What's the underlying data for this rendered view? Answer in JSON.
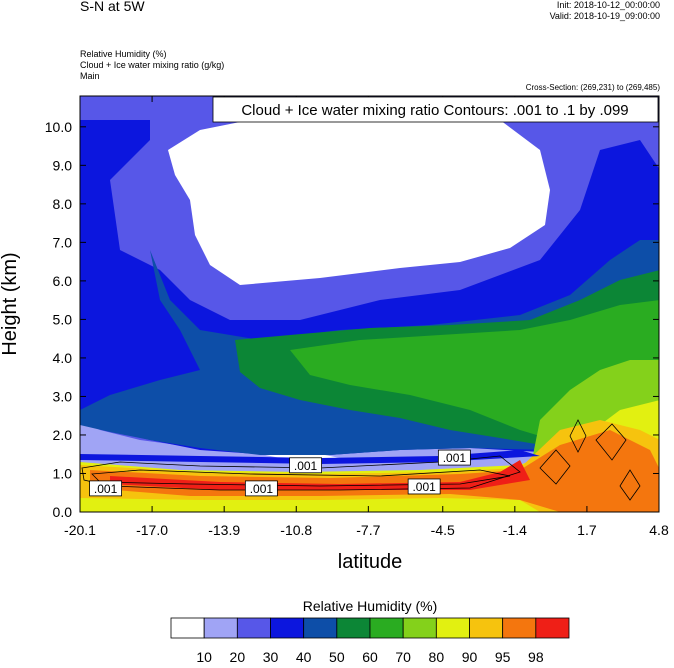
{
  "header": {
    "title": "S-N at 5W",
    "init": "Init: 2018-10-12_00:00:00",
    "valid": "Valid: 2018-10-19_09:00:00",
    "fields": [
      "Relative Humidity   (%)",
      "Cloud + Ice water mixing ratio   (g/kg)",
      "Main"
    ],
    "cross_section": "Cross-Section: (269,231) to (269,485)"
  },
  "chart_data": {
    "type": "heatmap",
    "title": "",
    "contour_label": "Cloud + Ice water mixing ratio Contours: .001 to .1 by .099",
    "xlabel": "latitude",
    "ylabel": "Height (km)",
    "xlim": [
      -20.1,
      4.8
    ],
    "ylim": [
      0.0,
      10.8
    ],
    "x_ticks": [
      "-20.1",
      "-17.0",
      "-13.9",
      "-10.8",
      "-7.7",
      "-4.5",
      "-1.4",
      "1.7",
      "4.8"
    ],
    "y_ticks": [
      "0.0",
      "1.0",
      "2.0",
      "3.0",
      "4.0",
      "5.0",
      "6.0",
      "7.0",
      "8.0",
      "9.0",
      "10.0"
    ],
    "contour_labels": [
      {
        "text": ".001",
        "x": -19.0,
        "y": 0.6
      },
      {
        "text": ".001",
        "x": -12.3,
        "y": 0.6
      },
      {
        "text": ".001",
        "x": -10.4,
        "y": 1.2
      },
      {
        "text": ".001",
        "x": -5.3,
        "y": 0.65
      },
      {
        "text": ".001",
        "x": -4.0,
        "y": 1.4
      }
    ],
    "colorbar": {
      "title": "Relative Humidity  (%)",
      "levels": [
        "10",
        "20",
        "30",
        "40",
        "50",
        "60",
        "70",
        "80",
        "90",
        "95",
        "98"
      ],
      "colors": [
        "#ffffff",
        "#a0a4f5",
        "#5757e8",
        "#0c16de",
        "#0d4ea8",
        "#0c8636",
        "#2aac21",
        "#84d11b",
        "#e2f011",
        "#f6c30e",
        "#f4760e",
        "#ef1f17"
      ]
    },
    "field_bands": [
      {
        "level": 0,
        "color": "#ffffff"
      },
      {
        "level": 1,
        "color": "#a0a4f5"
      },
      {
        "level": 2,
        "color": "#5757e8"
      },
      {
        "level": 3,
        "color": "#0c16de"
      },
      {
        "level": 4,
        "color": "#0d4ea8"
      },
      {
        "level": 5,
        "color": "#0c8636"
      },
      {
        "level": 6,
        "color": "#2aac21"
      },
      {
        "level": 7,
        "color": "#84d11b"
      },
      {
        "level": 8,
        "color": "#e2f011"
      },
      {
        "level": 9,
        "color": "#f6c30e"
      },
      {
        "level": 10,
        "color": "#f4760e"
      },
      {
        "level": 11,
        "color": "#ef1f17"
      }
    ]
  }
}
